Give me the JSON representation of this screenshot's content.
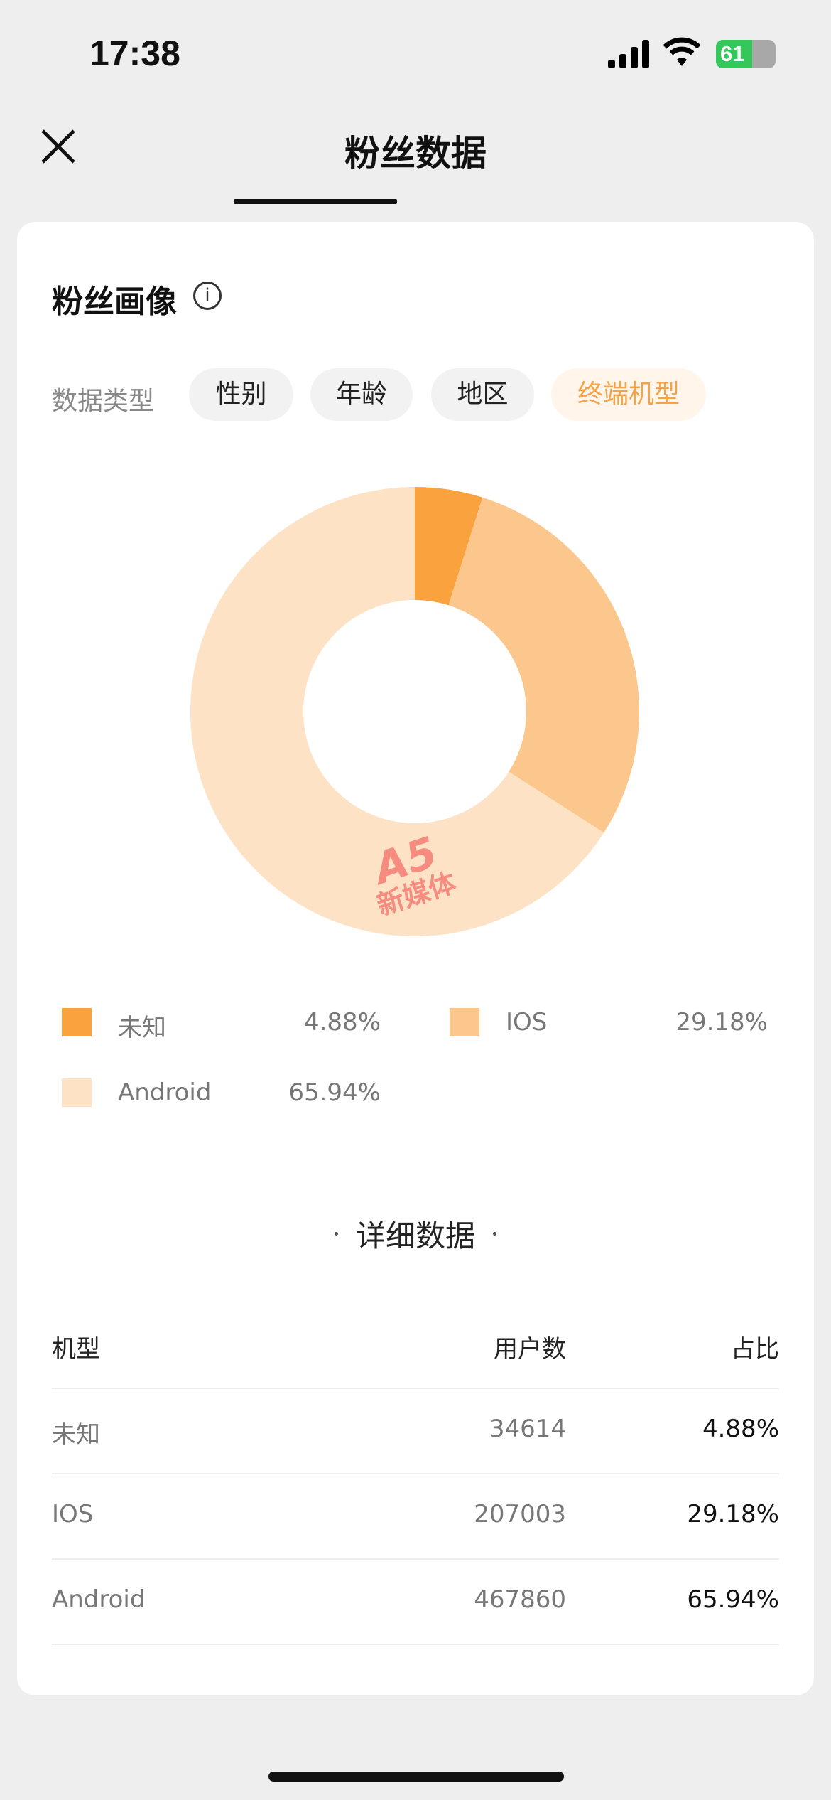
{
  "status_bar": {
    "time": "17:38",
    "battery": "61"
  },
  "header": {
    "title": "粉丝数据"
  },
  "section": {
    "title": "粉丝画像",
    "type_label": "数据类型",
    "chips": [
      {
        "label": "性别"
      },
      {
        "label": "年龄"
      },
      {
        "label": "地区"
      },
      {
        "label": "终端机型",
        "active": true
      }
    ]
  },
  "chart_data": {
    "type": "pie",
    "style": "donut",
    "categories": [
      "未知",
      "IOS",
      "Android"
    ],
    "values": [
      4.88,
      29.18,
      65.94
    ],
    "value_labels": [
      "4.88%",
      "29.18%",
      "65.94%"
    ],
    "colors": [
      "#f9a23e",
      "#fcc78d",
      "#fde2c5"
    ]
  },
  "watermark": {
    "logo": "A5",
    "text": "新媒体"
  },
  "detail": {
    "title": "详细数据",
    "headers": [
      "机型",
      "用户数",
      "占比"
    ],
    "rows": [
      {
        "model": "未知",
        "users": "34614",
        "share": "4.88%"
      },
      {
        "model": "IOS",
        "users": "207003",
        "share": "29.18%"
      },
      {
        "model": "Android",
        "users": "467860",
        "share": "65.94%"
      }
    ]
  }
}
